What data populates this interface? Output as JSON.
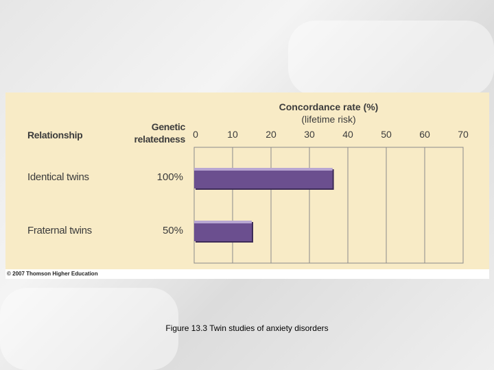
{
  "chart_data": {
    "type": "bar",
    "orientation": "horizontal",
    "title": "Concordance rate (%)",
    "subtitle": "(lifetime risk)",
    "columns": {
      "relationship_header": "Relationship",
      "relatedness_header": "Genetic relatedness"
    },
    "categories": [
      "Identical twins",
      "Fraternal twins"
    ],
    "relatedness": [
      "100%",
      "50%"
    ],
    "values": [
      36,
      15
    ],
    "xlim": [
      0,
      70
    ],
    "ticks": [
      0,
      10,
      20,
      30,
      40,
      50,
      60,
      70
    ],
    "grid": true,
    "bar_color": "#6b4f8f",
    "bar_highlight": "#b8a6d2",
    "bar_shadow": "#3d2b57"
  },
  "copyright": "© 2007 Thomson Higher Education",
  "caption": "Figure 13.3  Twin studies of anxiety disorders",
  "colors": {
    "panel": "#f8ebc6",
    "grid": "#8a8a8a",
    "text": "#3b3b3b"
  }
}
